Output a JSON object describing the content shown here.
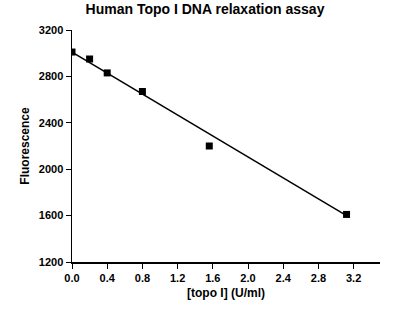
{
  "chart_data": {
    "type": "scatter",
    "title": "Human Topo I DNA relaxation assay",
    "x_label": "[topo I] (U/ml)",
    "y_label": "Fluorescence",
    "xlim": [
      0,
      3.5
    ],
    "ylim": [
      1200,
      3200
    ],
    "xticks": [
      {
        "value": 0,
        "label": "0.0"
      },
      0.4,
      0.8,
      1.2,
      1.6,
      {
        "value": 2,
        "label": "2.0"
      },
      2.4,
      2.8,
      3.2
    ],
    "yticks": [
      1200,
      1600,
      2000,
      2400,
      2800,
      3200
    ],
    "grid": false,
    "series": [
      {
        "type": "scatter",
        "marker": "square",
        "color": "#000000",
        "x": [
          0,
          0.2,
          0.4,
          0.8,
          1.56,
          3.12
        ],
        "values": [
          3010,
          2950,
          2830,
          2670,
          2200,
          1610
        ]
      },
      {
        "type": "line",
        "color": "#000000",
        "x": [
          0,
          3.12
        ],
        "values": [
          3010,
          1600
        ]
      }
    ]
  }
}
